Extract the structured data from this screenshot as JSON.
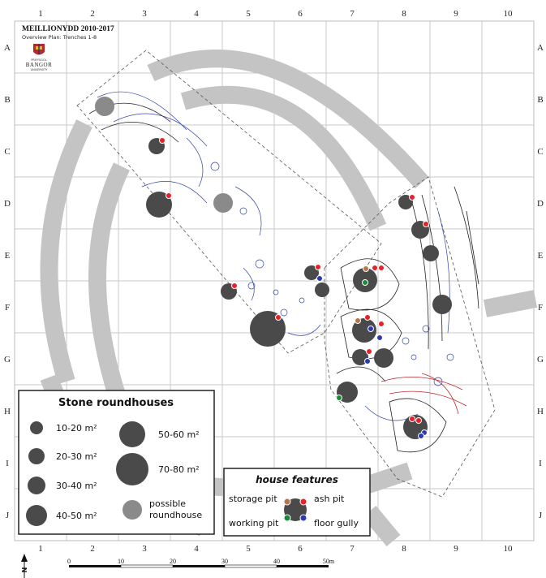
{
  "title": "MEILLIONYDD 2010-2017",
  "subtitle": "Overview Plan: Trenches 1-8",
  "logo": {
    "name": "BANGOR",
    "small_top": "PRIFYSGOL",
    "small_bottom": "UNIVERSITY"
  },
  "grid": {
    "columns": [
      "1",
      "2",
      "3",
      "4",
      "5",
      "6",
      "7",
      "8",
      "9",
      "10"
    ],
    "rows": [
      "A",
      "B",
      "C",
      "D",
      "E",
      "F",
      "G",
      "H",
      "I",
      "J"
    ]
  },
  "legend": {
    "title": "Stone roundhouses",
    "items": [
      {
        "label": "10-20 m²"
      },
      {
        "label": "20-30 m²"
      },
      {
        "label": "30-40 m²"
      },
      {
        "label": "40-50 m²"
      },
      {
        "label": "50-60 m²"
      },
      {
        "label": "70-80 m²"
      }
    ],
    "possible_line1": "possible",
    "possible_line2": "roundhouse"
  },
  "house_features": {
    "title": "house features",
    "storage_pit": "storage pit",
    "ash_pit": "ash pit",
    "working_pit": "working pit",
    "floor_gully": "floor gully"
  },
  "scale": {
    "ticks": [
      "0",
      "10",
      "20",
      "30",
      "40",
      "50m"
    ]
  },
  "north": "N",
  "colors": {
    "ring": "#c4c4c4",
    "house": "#4a4a4a",
    "possible": "#8a8a8a",
    "storage_pit": "#b8744a",
    "ash_pit": "#e8202a",
    "working_pit": "#1a8a3a",
    "floor_gully": "#2a3ab0",
    "plan_blue": "#3344aa"
  }
}
